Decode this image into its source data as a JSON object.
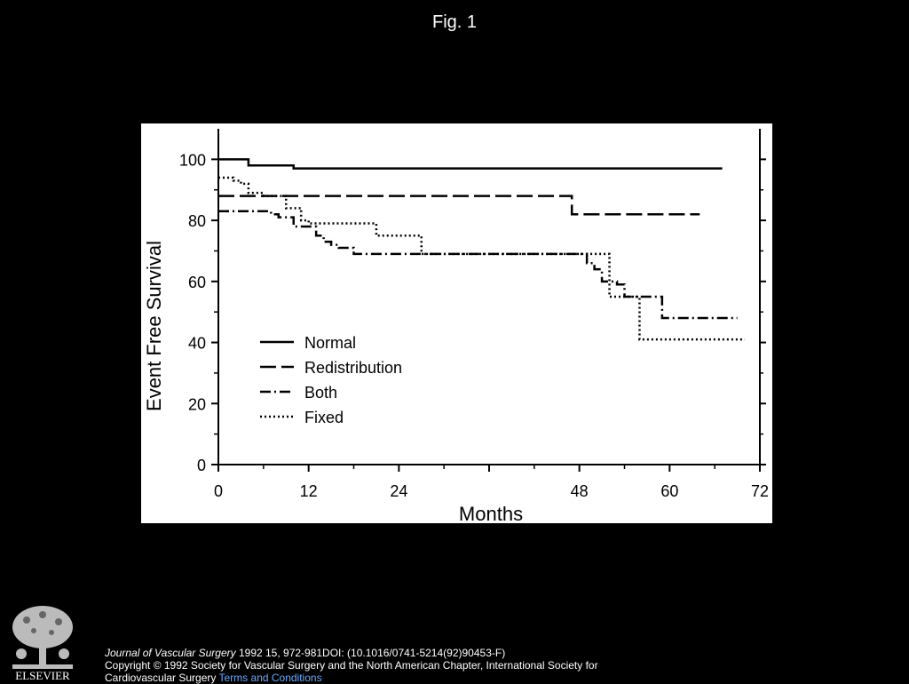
{
  "header": {
    "title": "Fig. 1"
  },
  "footer": {
    "publisher": "ELSEVIER",
    "journal": "Journal of Vascular Surgery",
    "citation": " 1992 15, 972-981DOI: (10.1016/0741-5214(92)90453-F)",
    "copyright": "Copyright © 1992 Society for Vascular Surgery and the North American Chapter, International Society for Cardiovascular Surgery ",
    "terms_link": "Terms and Conditions"
  },
  "chart_data": {
    "type": "line",
    "step": true,
    "title": "",
    "xlabel": "Months",
    "ylabel": "Event Free Survival",
    "xlim": [
      0,
      72
    ],
    "ylim": [
      0,
      110
    ],
    "xticks": [
      0,
      12,
      24,
      36,
      48,
      60,
      72
    ],
    "xticklabels": [
      "0",
      "12",
      "24",
      "",
      "48",
      "60",
      "72"
    ],
    "yticks": [
      0,
      20,
      40,
      60,
      80,
      100
    ],
    "grid": false,
    "legend": "lower-left",
    "series": [
      {
        "name": "Normal",
        "style": "solid",
        "x": [
          0,
          4,
          10,
          67
        ],
        "y": [
          100,
          98,
          97,
          97
        ]
      },
      {
        "name": "Redistribution",
        "style": "dashed",
        "x": [
          0,
          47,
          64
        ],
        "y": [
          88,
          82,
          82
        ]
      },
      {
        "name": "Both",
        "style": "dashdot",
        "x": [
          0,
          7,
          8,
          10,
          13,
          14,
          15,
          16,
          18,
          49,
          50,
          51,
          53,
          54,
          59,
          69
        ],
        "y": [
          83,
          82,
          81,
          78,
          75,
          73,
          72,
          71,
          69,
          66,
          64,
          60,
          59,
          55,
          48,
          48
        ]
      },
      {
        "name": "Fixed",
        "style": "dotted",
        "x": [
          0,
          1,
          2,
          3,
          4,
          6,
          9,
          11,
          12,
          21,
          27,
          49,
          52,
          55,
          56,
          70
        ],
        "y": [
          94,
          94,
          93,
          92,
          89,
          88,
          84,
          80,
          79,
          75,
          69,
          69,
          55,
          55,
          41,
          41
        ]
      }
    ]
  }
}
